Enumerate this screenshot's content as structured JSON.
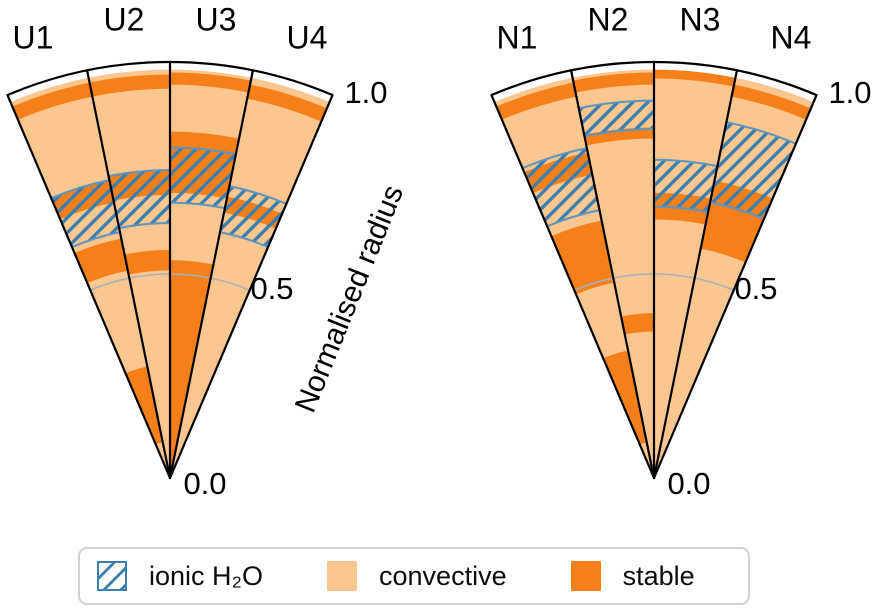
{
  "colors": {
    "convective": "#FBC68F",
    "stable": "#F5801A",
    "hatch_line": "#3C7EB0",
    "hatch_border": "#5E94C0",
    "gridline": "#A8B0BA",
    "outline": "#000000",
    "legend_border": "#D2D2D2",
    "text": "#000000"
  },
  "legend": {
    "items": [
      {
        "id": "ionic",
        "label": "ionic H₂O"
      },
      {
        "id": "convective",
        "label": "convective"
      },
      {
        "id": "stable",
        "label": "stable"
      }
    ]
  },
  "chart_data": {
    "type": "radial-wedge-structure-diagram",
    "description": "Interior structure of Uranus (U1-U4) and Neptune (N1-N4) models: layer composition vs normalised radius; hatched bands mark ionic H2O regions",
    "radial_axis": {
      "label": "Normalised radius",
      "ticks": [
        {
          "label": "1.0",
          "value": 1.0
        },
        {
          "label": "0.5",
          "value": 0.5
        },
        {
          "label": "0.0",
          "value": 0.0
        }
      ],
      "gridlines": [
        0.5
      ],
      "range": [
        0.0,
        1.0
      ]
    },
    "layer_types": [
      "convective",
      "stable",
      "ionic H₂O (hatched overlay)"
    ],
    "fans": [
      {
        "id": "uranus",
        "wedges": [
          {
            "label": "U1",
            "layers": [
              [
                0,
                0.09,
                "convective"
              ],
              [
                0.09,
                0.28,
                "stable"
              ],
              [
                0.28,
                0.52,
                "convective"
              ],
              [
                0.52,
                0.6,
                "stable"
              ],
              [
                0.6,
                0.69,
                "convective"
              ],
              [
                0.69,
                0.745,
                "stable"
              ],
              [
                0.745,
                0.955,
                "convective"
              ],
              [
                0.955,
                0.99,
                "stable"
              ],
              [
                0.99,
                1.0,
                "convective"
              ]
            ],
            "ionic_h2o": [
              0.615,
              0.745
            ]
          },
          {
            "label": "U2",
            "layers": [
              [
                0,
                0.51,
                "convective"
              ],
              [
                0.51,
                0.56,
                "stable"
              ],
              [
                0.56,
                0.695,
                "convective"
              ],
              [
                0.695,
                0.755,
                "stable"
              ],
              [
                0.755,
                0.955,
                "convective"
              ],
              [
                0.955,
                0.99,
                "stable"
              ],
              [
                0.99,
                1.0,
                "convective"
              ]
            ],
            "ionic_h2o": [
              0.625,
              0.755
            ]
          },
          {
            "label": "U3",
            "layers": [
              [
                0,
                0.535,
                "stable"
              ],
              [
                0.535,
                0.7,
                "convective"
              ],
              [
                0.7,
                0.85,
                "stable"
              ],
              [
                0.85,
                0.965,
                "convective"
              ],
              [
                0.965,
                0.995,
                "stable"
              ],
              [
                0.995,
                1.0,
                "convective"
              ]
            ],
            "ionic_h2o": [
              0.675,
              0.81
            ]
          },
          {
            "label": "U4",
            "layers": [
              [
                0,
                0.665,
                "convective"
              ],
              [
                0.665,
                0.705,
                "stable"
              ],
              [
                0.705,
                0.95,
                "convective"
              ],
              [
                0.95,
                0.985,
                "stable"
              ],
              [
                0.985,
                1.0,
                "convective"
              ]
            ],
            "ionic_h2o": [
              0.615,
              0.73
            ]
          }
        ]
      },
      {
        "id": "neptune",
        "wedges": [
          {
            "label": "N1",
            "layers": [
              [
                0,
                0.09,
                "convective"
              ],
              [
                0.09,
                0.32,
                "stable"
              ],
              [
                0.32,
                0.49,
                "convective"
              ],
              [
                0.49,
                0.645,
                "stable"
              ],
              [
                0.645,
                0.76,
                "convective"
              ],
              [
                0.76,
                0.815,
                "stable"
              ],
              [
                0.815,
                0.955,
                "convective"
              ],
              [
                0.955,
                0.99,
                "stable"
              ],
              [
                0.99,
                1.0,
                "convective"
              ]
            ],
            "ionic_h2o": [
              0.67,
              0.825
            ]
          },
          {
            "label": "N2",
            "layers": [
              [
                0,
                0.36,
                "convective"
              ],
              [
                0.36,
                0.405,
                "stable"
              ],
              [
                0.405,
                0.833,
                "convective"
              ],
              [
                0.833,
                0.86,
                "stable"
              ],
              [
                0.86,
                0.965,
                "convective"
              ],
              [
                0.965,
                0.995,
                "stable"
              ],
              [
                0.995,
                1.0,
                "convective"
              ]
            ],
            "ionic_h2o": [
              0.855,
              0.925
            ]
          },
          {
            "label": "N3",
            "layers": [
              [
                0,
                0.635,
                "convective"
              ],
              [
                0.635,
                0.7,
                "stable"
              ],
              [
                0.7,
                0.98,
                "convective"
              ],
              [
                0.98,
                1.0,
                "stable"
              ]
            ],
            "ionic_h2o": [
              0.665,
              0.78
            ]
          },
          {
            "label": "N4",
            "layers": [
              [
                0,
                0.575,
                "convective"
              ],
              [
                0.575,
                0.745,
                "stable"
              ],
              [
                0.745,
                0.955,
                "convective"
              ],
              [
                0.955,
                0.985,
                "stable"
              ],
              [
                0.985,
                1.0,
                "convective"
              ]
            ],
            "ionic_h2o": [
              0.69,
              0.89
            ]
          }
        ]
      }
    ]
  }
}
